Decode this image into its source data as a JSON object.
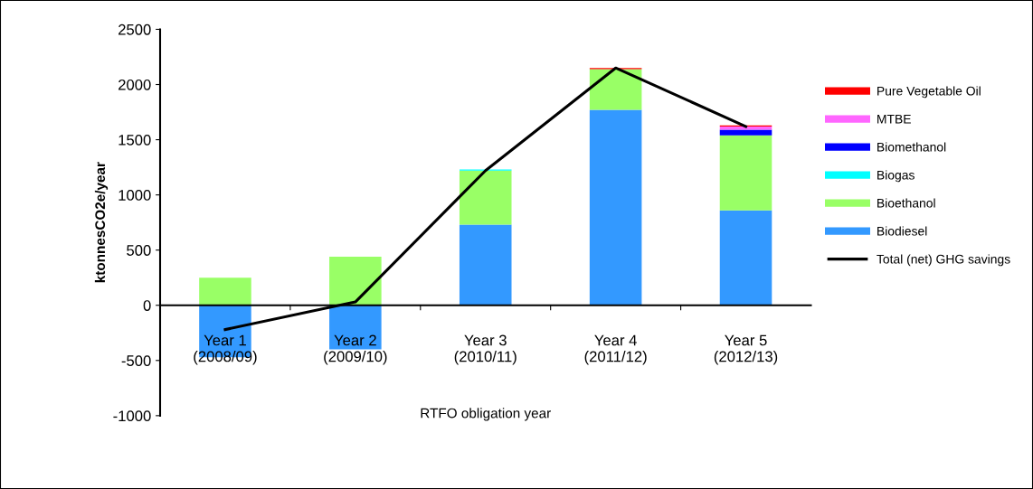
{
  "chart_data": {
    "type": "bar",
    "stacked": true,
    "xlabel": "RTFO obligation year",
    "ylabel": "ktonnesCO2e/year",
    "categories": [
      "Year 1\n(2008/09)",
      "Year 2\n(2009/10)",
      "Year 3\n(2010/11)",
      "Year 4\n(2011/12)",
      "Year 5\n(2012/13)"
    ],
    "series": [
      {
        "name": "Biodiesel",
        "color": "#3399ff",
        "values": [
          -470,
          -400,
          730,
          1770,
          860
        ]
      },
      {
        "name": "Bioethanol",
        "color": "#99ff66",
        "values": [
          250,
          440,
          490,
          370,
          680
        ]
      },
      {
        "name": "Biogas",
        "color": "#00ffff",
        "values": [
          0,
          0,
          10,
          0,
          0
        ]
      },
      {
        "name": "Biomethanol",
        "color": "#0000ff",
        "values": [
          0,
          0,
          0,
          0,
          50
        ]
      },
      {
        "name": "MTBE",
        "color": "#ff66ff",
        "values": [
          0,
          0,
          0,
          0,
          30
        ]
      },
      {
        "name": "Pure Vegetable Oil",
        "color": "#ff0000",
        "values": [
          0,
          0,
          0,
          10,
          10
        ]
      },
      {
        "name": "Total (net) GHG savings",
        "type": "line",
        "color": "#000000",
        "values": [
          -220,
          30,
          1220,
          2150,
          1620
        ]
      }
    ],
    "ylim": [
      -1000,
      2500
    ],
    "yticks": [
      -1000,
      -500,
      0,
      500,
      1000,
      1500,
      2000,
      2500
    ],
    "grid": false,
    "legend": "right",
    "marker": "none",
    "line_style": "solid"
  }
}
